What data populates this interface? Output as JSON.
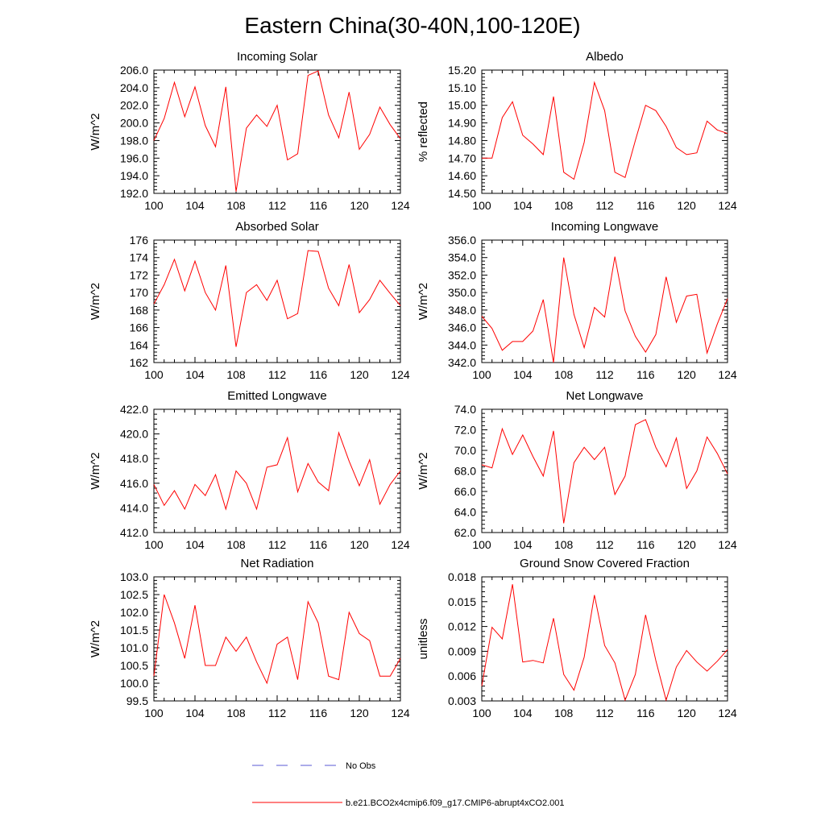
{
  "figure": {
    "title": "Eastern China(30-40N,100-120E)"
  },
  "legend": {
    "obs_label": "No Obs",
    "obs_color": "#5a5ad6",
    "model_label": "b.e21.BCO2x4cmip6.f09_g17.CMIP6-abrupt4xCO2.001",
    "model_color": "#ff0000"
  },
  "chart_data": [
    {
      "type": "line",
      "title": "Incoming Solar",
      "ylabel": "W/m^2",
      "xlabel": "",
      "xlim": [
        100,
        124
      ],
      "ylim": [
        192,
        206
      ],
      "xticks": [
        "100",
        "104",
        "108",
        "112",
        "116",
        "120",
        "124"
      ],
      "yticks": [
        "192.0",
        "194.0",
        "196.0",
        "198.0",
        "200.0",
        "202.0",
        "204.0",
        "206.0"
      ],
      "x": [
        100,
        101,
        102,
        103,
        104,
        105,
        106,
        107,
        108,
        109,
        110,
        111,
        112,
        113,
        114,
        115,
        116,
        117,
        118,
        119,
        120,
        121,
        122,
        123,
        124
      ],
      "values": [
        198.0,
        200.5,
        204.6,
        200.7,
        204.1,
        199.7,
        197.3,
        204.1,
        192.2,
        199.4,
        200.9,
        199.6,
        202.0,
        195.8,
        196.5,
        205.4,
        205.9,
        200.9,
        198.3,
        203.5,
        197.0,
        198.7,
        201.8,
        199.8,
        198.2
      ]
    },
    {
      "type": "line",
      "title": "Albedo",
      "ylabel": "% reflected",
      "xlabel": "",
      "xlim": [
        100,
        124
      ],
      "ylim": [
        14.5,
        15.2
      ],
      "xticks": [
        "100",
        "104",
        "108",
        "112",
        "116",
        "120",
        "124"
      ],
      "yticks": [
        "14.50",
        "14.60",
        "14.70",
        "14.80",
        "14.90",
        "15.00",
        "15.10",
        "15.20"
      ],
      "x": [
        100,
        101,
        102,
        103,
        104,
        105,
        106,
        107,
        108,
        109,
        110,
        111,
        112,
        113,
        114,
        115,
        116,
        117,
        118,
        119,
        120,
        121,
        122,
        123,
        124
      ],
      "values": [
        14.7,
        14.7,
        14.93,
        15.02,
        14.83,
        14.78,
        14.72,
        15.05,
        14.62,
        14.58,
        14.79,
        15.13,
        14.97,
        14.62,
        14.59,
        14.8,
        15.0,
        14.97,
        14.88,
        14.76,
        14.72,
        14.73,
        14.91,
        14.86,
        14.84
      ]
    },
    {
      "type": "line",
      "title": "Absorbed Solar",
      "ylabel": "W/m^2",
      "xlabel": "",
      "xlim": [
        100,
        124
      ],
      "ylim": [
        162,
        176
      ],
      "xticks": [
        "100",
        "104",
        "108",
        "112",
        "116",
        "120",
        "124"
      ],
      "yticks": [
        "162",
        "164",
        "166",
        "168",
        "170",
        "172",
        "174",
        "176"
      ],
      "x": [
        100,
        101,
        102,
        103,
        104,
        105,
        106,
        107,
        108,
        109,
        110,
        111,
        112,
        113,
        114,
        115,
        116,
        117,
        118,
        119,
        120,
        121,
        122,
        123,
        124
      ],
      "values": [
        168.7,
        170.9,
        173.8,
        170.2,
        173.6,
        170.0,
        168.0,
        173.1,
        163.8,
        170.0,
        170.9,
        169.1,
        171.4,
        167.0,
        167.6,
        174.8,
        174.7,
        170.5,
        168.5,
        173.2,
        167.7,
        169.2,
        171.4,
        169.9,
        168.5
      ]
    },
    {
      "type": "line",
      "title": "Incoming Longwave",
      "ylabel": "W/m^2",
      "xlabel": "",
      "xlim": [
        100,
        124
      ],
      "ylim": [
        342,
        356
      ],
      "xticks": [
        "100",
        "104",
        "108",
        "112",
        "116",
        "120",
        "124"
      ],
      "yticks": [
        "342.0",
        "344.0",
        "346.0",
        "348.0",
        "350.0",
        "352.0",
        "354.0",
        "356.0"
      ],
      "x": [
        100,
        101,
        102,
        103,
        104,
        105,
        106,
        107,
        108,
        109,
        110,
        111,
        112,
        113,
        114,
        115,
        116,
        117,
        118,
        119,
        120,
        121,
        122,
        123,
        124
      ],
      "values": [
        347.3,
        345.9,
        343.4,
        344.4,
        344.4,
        345.6,
        349.2,
        342.0,
        354.0,
        347.5,
        343.7,
        348.3,
        347.2,
        354.1,
        347.9,
        345.0,
        343.2,
        345.2,
        351.8,
        346.6,
        349.6,
        349.8,
        343.1,
        346.4,
        349.3
      ]
    },
    {
      "type": "line",
      "title": "Emitted Longwave",
      "ylabel": "W/m^2",
      "xlabel": "",
      "xlim": [
        100,
        124
      ],
      "ylim": [
        412,
        422
      ],
      "xticks": [
        "100",
        "104",
        "108",
        "112",
        "116",
        "120",
        "124"
      ],
      "yticks": [
        "412.0",
        "414.0",
        "416.0",
        "418.0",
        "420.0",
        "422.0"
      ],
      "x": [
        100,
        101,
        102,
        103,
        104,
        105,
        106,
        107,
        108,
        109,
        110,
        111,
        112,
        113,
        114,
        115,
        116,
        117,
        118,
        119,
        120,
        121,
        122,
        123,
        124
      ],
      "values": [
        415.9,
        414.2,
        415.4,
        413.9,
        415.9,
        415.0,
        416.7,
        413.9,
        417.0,
        416.0,
        413.9,
        417.3,
        417.5,
        419.7,
        415.3,
        417.6,
        416.1,
        415.4,
        420.1,
        417.8,
        415.8,
        417.9,
        414.3,
        415.9,
        417.0
      ]
    },
    {
      "type": "line",
      "title": "Net Longwave",
      "ylabel": "W/m^2",
      "xlabel": "",
      "xlim": [
        100,
        124
      ],
      "ylim": [
        62,
        74
      ],
      "xticks": [
        "100",
        "104",
        "108",
        "112",
        "116",
        "120",
        "124"
      ],
      "yticks": [
        "62.0",
        "64.0",
        "66.0",
        "68.0",
        "70.0",
        "72.0",
        "74.0"
      ],
      "x": [
        100,
        101,
        102,
        103,
        104,
        105,
        106,
        107,
        108,
        109,
        110,
        111,
        112,
        113,
        114,
        115,
        116,
        117,
        118,
        119,
        120,
        121,
        122,
        123,
        124
      ],
      "values": [
        68.6,
        68.3,
        72.1,
        69.6,
        71.5,
        69.4,
        67.5,
        71.9,
        62.9,
        68.8,
        70.3,
        69.1,
        70.3,
        65.7,
        67.5,
        72.5,
        73.0,
        70.3,
        68.4,
        71.2,
        66.3,
        68.0,
        71.3,
        69.7,
        67.7
      ]
    },
    {
      "type": "line",
      "title": "Net Radiation",
      "ylabel": "W/m^2",
      "xlabel": "",
      "xlim": [
        100,
        124
      ],
      "ylim": [
        99.5,
        103.0
      ],
      "xticks": [
        "100",
        "104",
        "108",
        "112",
        "116",
        "120",
        "124"
      ],
      "yticks": [
        "99.5",
        "100.0",
        "100.5",
        "101.0",
        "101.5",
        "102.0",
        "102.5",
        "103.0"
      ],
      "x": [
        100,
        101,
        102,
        103,
        104,
        105,
        106,
        107,
        108,
        109,
        110,
        111,
        112,
        113,
        114,
        115,
        116,
        117,
        118,
        119,
        120,
        121,
        122,
        123,
        124
      ],
      "values": [
        100.2,
        102.5,
        101.7,
        100.7,
        102.2,
        100.5,
        100.5,
        101.3,
        100.9,
        101.3,
        100.6,
        100.0,
        101.1,
        101.3,
        100.1,
        102.3,
        101.7,
        100.2,
        100.1,
        102.0,
        101.4,
        101.2,
        100.2,
        100.2,
        100.7
      ]
    },
    {
      "type": "line",
      "title": "Ground Snow Covered Fraction",
      "ylabel": "unitless",
      "xlabel": "",
      "xlim": [
        100,
        124
      ],
      "ylim": [
        0.003,
        0.018
      ],
      "xticks": [
        "100",
        "104",
        "108",
        "112",
        "116",
        "120",
        "124"
      ],
      "yticks": [
        "0.003",
        "0.006",
        "0.009",
        "0.012",
        "0.015",
        "0.018"
      ],
      "x": [
        100,
        101,
        102,
        103,
        104,
        105,
        106,
        107,
        108,
        109,
        110,
        111,
        112,
        113,
        114,
        115,
        116,
        117,
        118,
        119,
        120,
        121,
        122,
        123,
        124
      ],
      "values": [
        0.0048,
        0.0119,
        0.0105,
        0.0171,
        0.0077,
        0.0079,
        0.0076,
        0.013,
        0.0062,
        0.0043,
        0.0083,
        0.0158,
        0.0097,
        0.0076,
        0.0031,
        0.0062,
        0.0134,
        0.0079,
        0.0031,
        0.0071,
        0.0091,
        0.0077,
        0.0066,
        0.0078,
        0.0092
      ]
    }
  ]
}
